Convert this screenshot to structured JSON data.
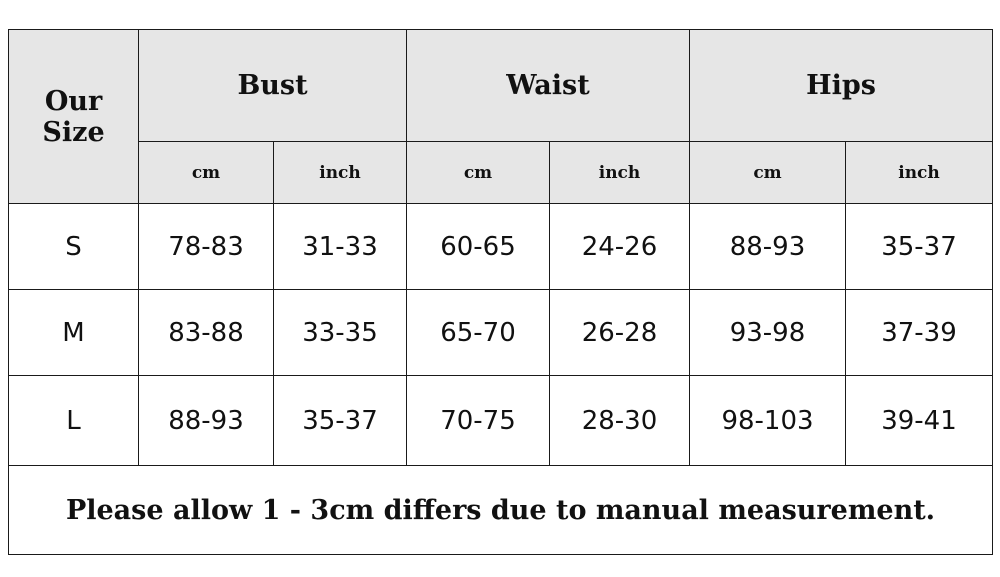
{
  "header": {
    "our_size": "Our Size",
    "groups": [
      "Bust",
      "Waist",
      "Hips"
    ],
    "units": [
      "cm",
      "inch",
      "cm",
      "inch",
      "cm",
      "inch"
    ]
  },
  "rows": [
    {
      "size": "S",
      "values": [
        "78-83",
        "31-33",
        "60-65",
        "24-26",
        "88-93",
        "35-37"
      ]
    },
    {
      "size": "M",
      "values": [
        "83-88",
        "33-35",
        "65-70",
        "26-28",
        "93-98",
        "37-39"
      ]
    },
    {
      "size": "L",
      "values": [
        "88-93",
        "35-37",
        "70-75",
        "28-30",
        "98-103",
        "39-41"
      ]
    }
  ],
  "note": "Please allow 1 - 3cm differs due to manual measurement."
}
